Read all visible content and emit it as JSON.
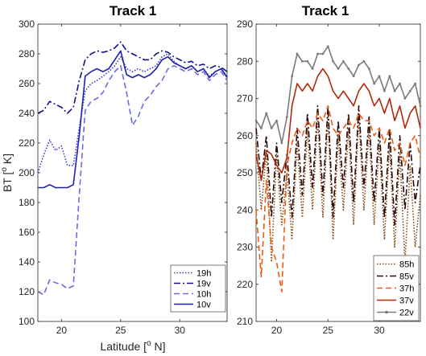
{
  "chart_data": [
    {
      "type": "line",
      "title": "Track 1",
      "xlabel": "Latitude [o N]",
      "xlabel_parts": [
        "Latitude [",
        "o",
        " N]"
      ],
      "ylabel": "BT [o K]",
      "ylabel_parts": [
        "BT [",
        "o",
        " K]"
      ],
      "xlim": [
        18,
        34
      ],
      "ylim": [
        100,
        300
      ],
      "xticks": [
        20,
        25,
        30
      ],
      "yticks": [
        100,
        120,
        140,
        160,
        180,
        200,
        220,
        240,
        260,
        280,
        300
      ],
      "legend_position": "bottom-right",
      "x": [
        18,
        18.5,
        19,
        19.5,
        20,
        20.5,
        21,
        21.5,
        22,
        22.5,
        23,
        23.5,
        24,
        24.5,
        25,
        25.5,
        26,
        26.5,
        27,
        27.5,
        28,
        28.5,
        29,
        29.5,
        30,
        30.5,
        31,
        31.5,
        32,
        32.5,
        33,
        33.5,
        34
      ],
      "series": [
        {
          "name": "19h",
          "color": "#3a3ad0",
          "style": "dotted",
          "values": [
            200,
            212,
            222,
            215,
            218,
            205,
            205,
            230,
            255,
            260,
            262,
            265,
            268,
            272,
            278,
            270,
            268,
            270,
            268,
            270,
            272,
            278,
            280,
            275,
            272,
            270,
            272,
            268,
            270,
            265,
            268,
            270,
            265
          ]
        },
        {
          "name": "19v",
          "color": "#10108a",
          "style": "dashdot",
          "values": [
            240,
            242,
            248,
            246,
            244,
            240,
            244,
            262,
            276,
            280,
            282,
            281,
            282,
            284,
            288,
            282,
            280,
            278,
            276,
            276,
            280,
            282,
            281,
            278,
            276,
            274,
            275,
            272,
            273,
            270,
            272,
            271,
            268
          ]
        },
        {
          "name": "10h",
          "color": "#6b6be8",
          "style": "dashed",
          "values": [
            120,
            118,
            128,
            126,
            125,
            122,
            124,
            185,
            242,
            248,
            250,
            254,
            262,
            268,
            272,
            254,
            232,
            238,
            248,
            252,
            258,
            262,
            270,
            272,
            270,
            268,
            270,
            266,
            268,
            262,
            266,
            268,
            262
          ]
        },
        {
          "name": "10v",
          "color": "#2020b0",
          "style": "solid",
          "values": [
            190,
            190,
            192,
            190,
            190,
            190,
            192,
            225,
            265,
            268,
            270,
            268,
            270,
            276,
            282,
            266,
            264,
            266,
            264,
            266,
            270,
            276,
            278,
            274,
            272,
            270,
            272,
            268,
            270,
            264,
            268,
            270,
            264
          ]
        }
      ]
    },
    {
      "type": "line",
      "title": "Track 1",
      "xlabel": "",
      "ylabel": "",
      "xlim": [
        18,
        34
      ],
      "ylim": [
        210,
        290
      ],
      "xticks": [
        20,
        25,
        30
      ],
      "yticks": [
        210,
        220,
        230,
        240,
        250,
        260,
        270,
        280,
        290
      ],
      "legend_position": "bottom-right",
      "x": [
        18,
        18.5,
        19,
        19.5,
        20,
        20.5,
        21,
        21.5,
        22,
        22.5,
        23,
        23.5,
        24,
        24.5,
        25,
        25.5,
        26,
        26.5,
        27,
        27.5,
        28,
        28.5,
        29,
        29.5,
        30,
        30.5,
        31,
        31.5,
        32,
        32.5,
        33,
        33.5,
        34
      ],
      "series": [
        {
          "name": "85h",
          "color": "#8a4a10",
          "style": "dotted",
          "values": [
            258,
            240,
            256,
            226,
            255,
            236,
            250,
            232,
            258,
            238,
            262,
            240,
            265,
            238,
            265,
            232,
            260,
            240,
            262,
            236,
            265,
            240,
            262,
            236,
            258,
            232,
            258,
            230,
            255,
            226,
            252,
            230,
            244
          ]
        },
        {
          "name": "85v",
          "color": "#2a0a0a",
          "style": "dashdot",
          "values": [
            262,
            248,
            260,
            238,
            258,
            242,
            255,
            238,
            262,
            244,
            266,
            246,
            268,
            244,
            268,
            238,
            264,
            246,
            266,
            242,
            268,
            246,
            265,
            242,
            262,
            238,
            262,
            236,
            260,
            240,
            258,
            242,
            252
          ]
        },
        {
          "name": "37h",
          "color": "#f05a10",
          "style": "dashed",
          "values": [
            240,
            222,
            248,
            230,
            226,
            218,
            252,
            258,
            262,
            260,
            264,
            262,
            266,
            264,
            268,
            262,
            260,
            262,
            264,
            262,
            266,
            264,
            264,
            260,
            262,
            258,
            262,
            256,
            258,
            252,
            258,
            260,
            254
          ]
        },
        {
          "name": "37v",
          "color": "#b02a0a",
          "style": "solid",
          "values": [
            255,
            248,
            256,
            255,
            252,
            250,
            254,
            268,
            274,
            272,
            274,
            272,
            276,
            278,
            276,
            272,
            270,
            272,
            270,
            268,
            272,
            274,
            272,
            268,
            270,
            266,
            270,
            264,
            268,
            262,
            266,
            268,
            262
          ]
        },
        {
          "name": "22v",
          "color": "#7a7a7a",
          "style": "solid-marker",
          "values": [
            264,
            262,
            266,
            262,
            264,
            258,
            265,
            276,
            282,
            280,
            280,
            278,
            282,
            282,
            284,
            280,
            278,
            280,
            278,
            276,
            279,
            280,
            278,
            274,
            276,
            272,
            276,
            272,
            274,
            270,
            272,
            274,
            268
          ]
        }
      ]
    }
  ]
}
